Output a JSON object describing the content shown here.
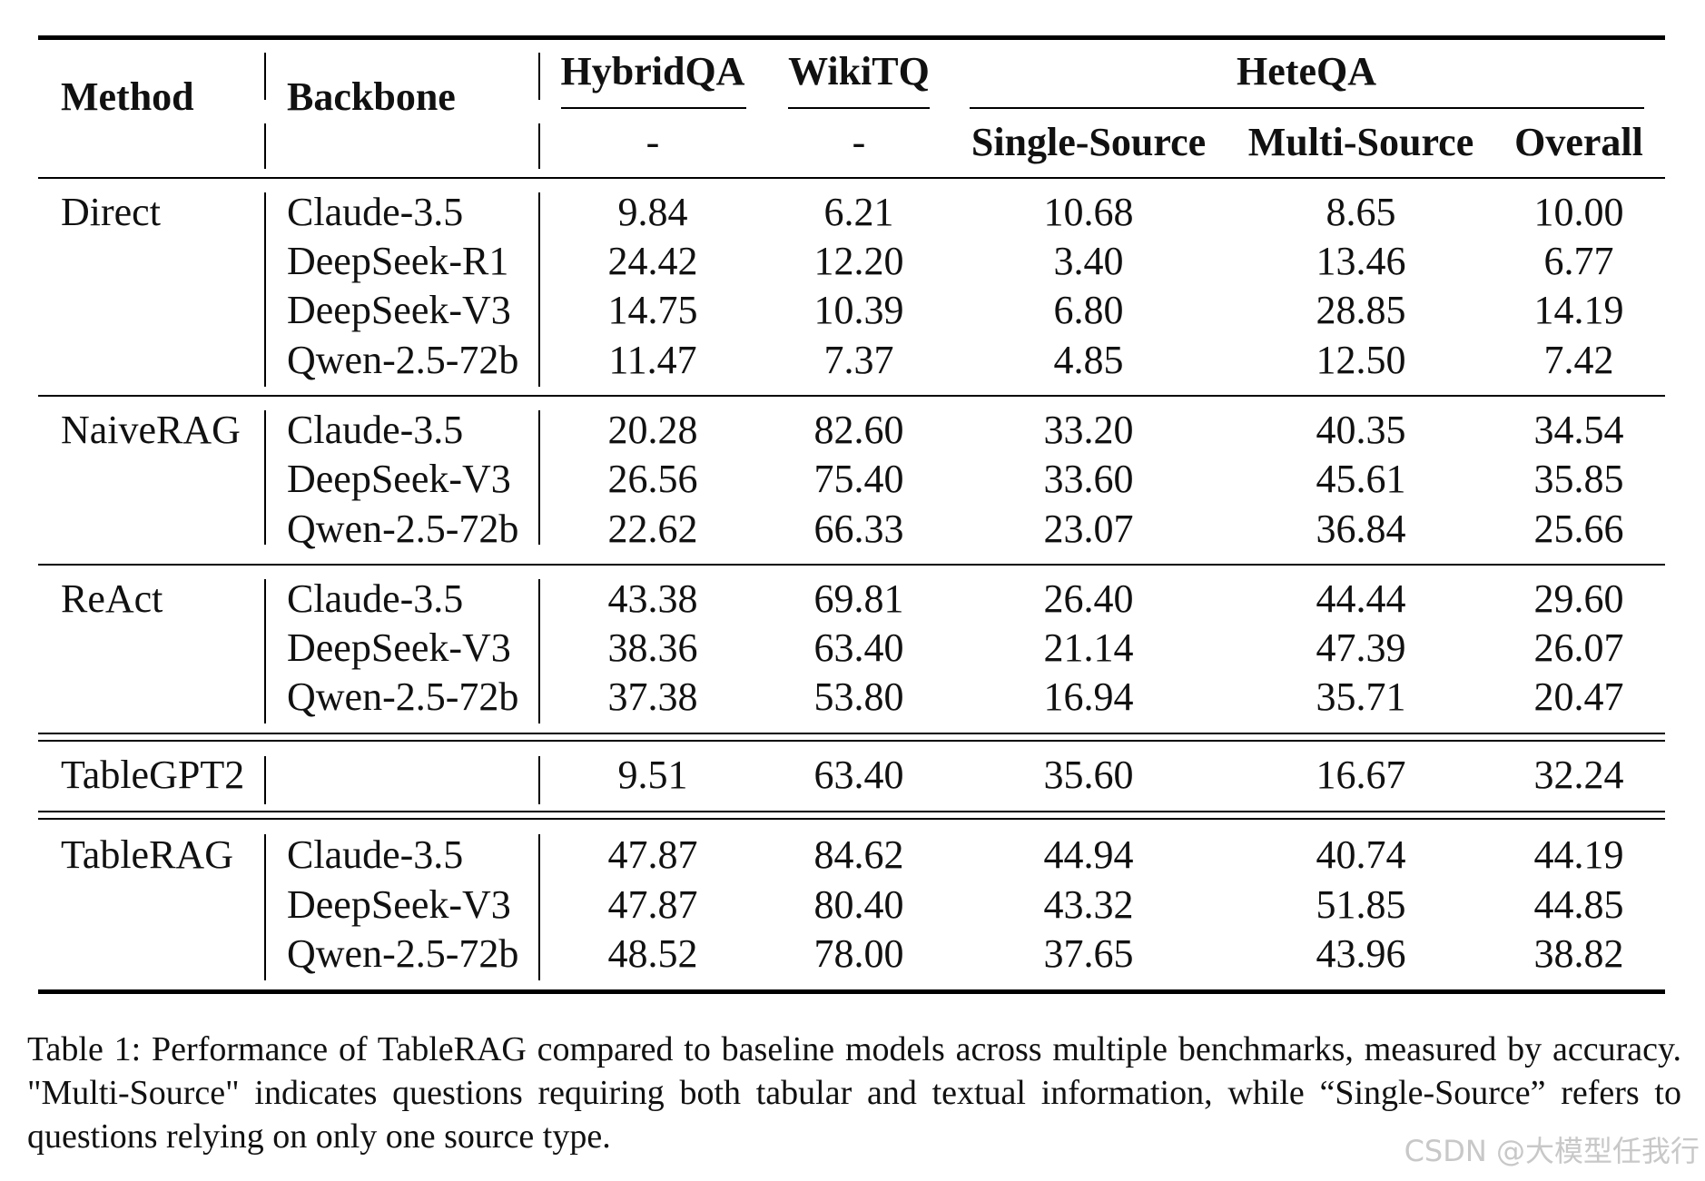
{
  "table": {
    "headers": {
      "method": "Method",
      "backbone": "Backbone",
      "hybridqa": "HybridQA",
      "wikitq": "WikiTQ",
      "heteqa": "HeteQA",
      "hybridqa_sub": "-",
      "wikitq_sub": "-",
      "single_source": "Single-Source",
      "multi_source": "Multi-Source",
      "overall": "Overall"
    },
    "groups": [
      {
        "method": "Direct",
        "rows": [
          {
            "backbone": "Claude-3.5",
            "values": [
              "9.84",
              "6.21",
              "10.68",
              "8.65",
              "10.00"
            ]
          },
          {
            "backbone": "DeepSeek-R1",
            "values": [
              "24.42",
              "12.20",
              "3.40",
              "13.46",
              "6.77"
            ]
          },
          {
            "backbone": "DeepSeek-V3",
            "values": [
              "14.75",
              "10.39",
              "6.80",
              "28.85",
              "14.19"
            ]
          },
          {
            "backbone": "Qwen-2.5-72b",
            "values": [
              "11.47",
              "7.37",
              "4.85",
              "12.50",
              "7.42"
            ]
          }
        ]
      },
      {
        "method": "NaiveRAG",
        "rows": [
          {
            "backbone": "Claude-3.5",
            "values": [
              "20.28",
              "82.60",
              "33.20",
              "40.35",
              "34.54"
            ]
          },
          {
            "backbone": "DeepSeek-V3",
            "values": [
              "26.56",
              "75.40",
              "33.60",
              "45.61",
              "35.85"
            ]
          },
          {
            "backbone": "Qwen-2.5-72b",
            "values": [
              "22.62",
              "66.33",
              "23.07",
              "36.84",
              "25.66"
            ]
          }
        ]
      },
      {
        "method": "ReAct",
        "rows": [
          {
            "backbone": "Claude-3.5",
            "values": [
              "43.38",
              "69.81",
              "26.40",
              "44.44",
              "29.60"
            ]
          },
          {
            "backbone": "DeepSeek-V3",
            "values": [
              "38.36",
              "63.40",
              "21.14",
              "47.39",
              "26.07"
            ]
          },
          {
            "backbone": "Qwen-2.5-72b",
            "values": [
              "37.38",
              "53.80",
              "16.94",
              "35.71",
              "20.47"
            ]
          }
        ]
      },
      {
        "method": "TableGPT2",
        "rows": [
          {
            "values": [
              "9.51",
              "63.40",
              "35.60",
              "16.67",
              "32.24"
            ]
          }
        ]
      },
      {
        "method": "TableRAG",
        "rows": [
          {
            "backbone": "Claude-3.5",
            "values": [
              "47.87",
              "84.62",
              "44.94",
              "40.74",
              "44.19"
            ]
          },
          {
            "backbone": "DeepSeek-V3",
            "values": [
              "47.87",
              "80.40",
              "43.32",
              "51.85",
              "44.85"
            ]
          },
          {
            "backbone": "Qwen-2.5-72b",
            "values": [
              "48.52",
              "78.00",
              "37.65",
              "43.96",
              "38.82"
            ]
          }
        ]
      }
    ]
  },
  "caption_lines": [
    "Table 1: Performance of TableRAG compared to baseline models across multiple benchmarks, measured by accuracy.",
    "\"Multi-Source\" indicates questions requiring both tabular and textual information, while “Single-Source” refers to",
    "questions relying on only one source type."
  ],
  "watermark": "CSDN @大模型任我行",
  "colors": {
    "ink": "#111111",
    "watermark": "#c8c8c8"
  }
}
